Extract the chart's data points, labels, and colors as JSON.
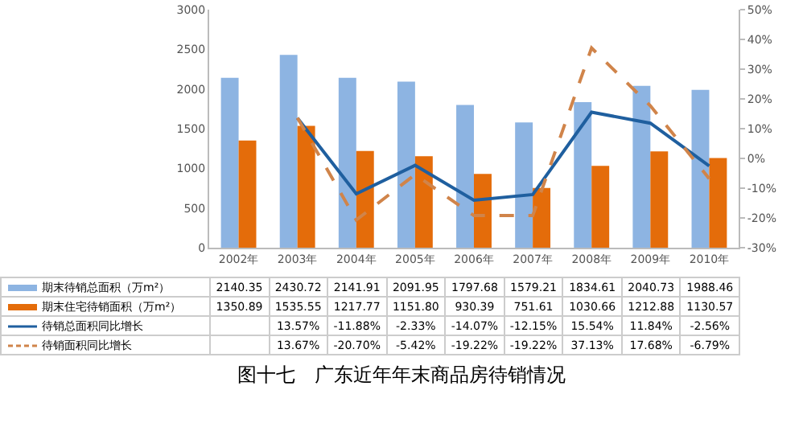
{
  "chart_data": {
    "type": "bar",
    "title": "图十七　广东近年年末商品房待销情况",
    "categories": [
      "2002年",
      "2003年",
      "2004年",
      "2005年",
      "2006年",
      "2007年",
      "2008年",
      "2009年",
      "2010年"
    ],
    "series": [
      {
        "name": "期末待销总面积（万m²）",
        "color": "#8db4e2",
        "values": [
          2140.35,
          2430.72,
          2141.91,
          2091.95,
          1797.68,
          1579.21,
          1834.61,
          2040.73,
          1988.46
        ],
        "value_labels": [
          "2140.35",
          "2430.72",
          "2141.91",
          "2091.95",
          "1797.68",
          "1579.21",
          "1834.61",
          "2040.73",
          "1988.46"
        ]
      },
      {
        "name": "期末住宅待销面积（万m²）",
        "color": "#e46c0a",
        "values": [
          1350.89,
          1535.55,
          1217.77,
          1151.8,
          930.39,
          751.61,
          1030.66,
          1212.88,
          1130.57
        ],
        "value_labels": [
          "1350.89",
          "1535.55",
          "1217.77",
          "1151.80",
          "930.39",
          "751.61",
          "1030.66",
          "1212.88",
          "1130.57"
        ]
      },
      {
        "name": "待销总面积同比增长",
        "type": "line",
        "axis": "y2",
        "color": "#1f5f9f",
        "line_style": "solid",
        "values": [
          null,
          13.57,
          -11.88,
          -2.33,
          -14.07,
          -12.15,
          15.54,
          11.84,
          -2.56
        ],
        "value_labels": [
          null,
          "13.57%",
          "-11.88%",
          "-2.33%",
          "-14.07%",
          "-12.15%",
          "15.54%",
          "11.84%",
          "-2.56%"
        ]
      },
      {
        "name": "待销面积同比增长",
        "type": "line",
        "axis": "y2",
        "color": "#d0844a",
        "line_style": "dashed",
        "values": [
          null,
          13.67,
          -20.7,
          -5.42,
          -19.22,
          -19.22,
          37.13,
          17.68,
          -6.79
        ],
        "value_labels": [
          null,
          "13.67%",
          "-20.70%",
          "-5.42%",
          "-19.22%",
          "-19.22%",
          "37.13%",
          "17.68%",
          "-6.79%"
        ]
      }
    ],
    "ylim": [
      0,
      3000
    ],
    "yticks": [
      0,
      500,
      1000,
      1500,
      2000,
      2500,
      3000
    ],
    "y2lim": [
      -30,
      50
    ],
    "y2ticks": [
      {
        "value": -30,
        "label": "-30%"
      },
      {
        "value": -20,
        "label": "-20%"
      },
      {
        "value": -10,
        "label": "-10%"
      },
      {
        "value": 0,
        "label": "0%"
      },
      {
        "value": 10,
        "label": "10%"
      },
      {
        "value": 20,
        "label": "20%"
      },
      {
        "value": 30,
        "label": "30%"
      },
      {
        "value": 40,
        "label": "40%"
      },
      {
        "value": 50,
        "label": "50%"
      }
    ],
    "grid": false,
    "legend": "bottom",
    "marker": "none"
  }
}
